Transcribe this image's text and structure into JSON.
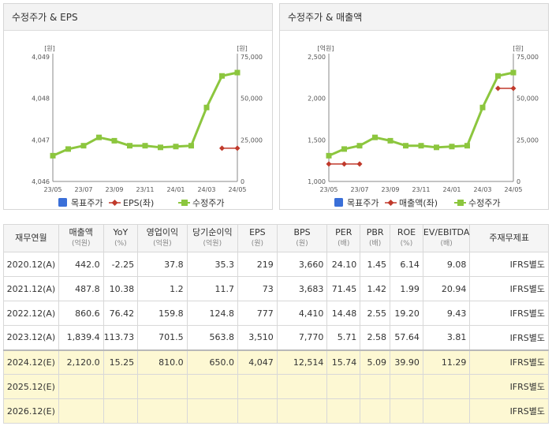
{
  "chart_data": [
    {
      "type": "line",
      "title": "수정주가 & EPS",
      "x": [
        "23/05",
        "23/06",
        "23/07",
        "23/08",
        "23/09",
        "23/10",
        "23/11",
        "23/12",
        "24/01",
        "24/02",
        "24/03",
        "24/04",
        "24/05"
      ],
      "xtick_labels": [
        "23/05",
        "23/07",
        "23/09",
        "23/11",
        "24/01",
        "24/03",
        "24/05"
      ],
      "left_axis": {
        "unit": "[원]",
        "range": [
          4046,
          4049
        ],
        "ticks": [
          "4,049",
          "4,048",
          "4,047",
          "4,046"
        ],
        "tick_values": [
          4049,
          4048,
          4047,
          4046
        ]
      },
      "right_axis": {
        "unit": "[원]",
        "range": [
          0,
          75000
        ],
        "ticks": [
          "75,000",
          "50,000",
          "25,000",
          "0"
        ],
        "tick_values": [
          75000,
          50000,
          25000,
          0
        ]
      },
      "series": [
        {
          "name": "목표주가",
          "axis": "right",
          "color": "#3a6fd8",
          "marker": "square",
          "values": [
            null,
            null,
            null,
            null,
            null,
            null,
            null,
            null,
            null,
            null,
            null,
            null,
            null
          ]
        },
        {
          "name": "EPS(좌)",
          "axis": "left",
          "color": "#c0392b",
          "marker": "diamond",
          "values": [
            null,
            null,
            null,
            null,
            null,
            null,
            null,
            null,
            null,
            null,
            null,
            4046.8,
            4046.8
          ]
        },
        {
          "name": "수정주가",
          "axis": "right",
          "color": "#8cc63e",
          "marker": "square",
          "values": [
            15500,
            19500,
            21500,
            26500,
            24500,
            21500,
            21500,
            20500,
            21000,
            21500,
            44500,
            63500,
            65500
          ]
        }
      ],
      "legend": "bottom"
    },
    {
      "type": "line",
      "title": "수정주가 & 매출액",
      "x": [
        "23/05",
        "23/06",
        "23/07",
        "23/08",
        "23/09",
        "23/10",
        "23/11",
        "23/12",
        "24/01",
        "24/02",
        "24/03",
        "24/04",
        "24/05"
      ],
      "xtick_labels": [
        "23/05",
        "23/07",
        "23/09",
        "23/11",
        "24/01",
        "24/03",
        "24/05"
      ],
      "left_axis": {
        "unit": "[억원]",
        "range": [
          1000,
          2500
        ],
        "ticks": [
          "2,500",
          "2,000",
          "1,500",
          "1,000"
        ],
        "tick_values": [
          2500,
          2000,
          1500,
          1000
        ]
      },
      "right_axis": {
        "unit": "[원]",
        "range": [
          0,
          75000
        ],
        "ticks": [
          "75,000",
          "50,000",
          "25,000",
          "0"
        ],
        "tick_values": [
          75000,
          50000,
          25000,
          0
        ]
      },
      "series": [
        {
          "name": "목표주가",
          "axis": "right",
          "color": "#3a6fd8",
          "marker": "square",
          "values": [
            null,
            null,
            null,
            null,
            null,
            null,
            null,
            null,
            null,
            null,
            null,
            null,
            null
          ]
        },
        {
          "name": "매출액(좌)",
          "axis": "left",
          "color": "#c0392b",
          "marker": "diamond",
          "values": [
            1210,
            1210,
            1210,
            null,
            null,
            null,
            null,
            null,
            null,
            null,
            null,
            2120,
            2120
          ]
        },
        {
          "name": "수정주가",
          "axis": "right",
          "color": "#8cc63e",
          "marker": "square",
          "values": [
            15500,
            19500,
            21500,
            26500,
            24500,
            21500,
            21500,
            20500,
            21000,
            21500,
            44500,
            63500,
            65500
          ]
        }
      ],
      "legend": "bottom"
    }
  ],
  "table": {
    "headers": [
      {
        "label": "재무연월",
        "sub": ""
      },
      {
        "label": "매출액",
        "sub": "(억원)"
      },
      {
        "label": "YoY",
        "sub": "(%)"
      },
      {
        "label": "영업이익",
        "sub": "(억원)"
      },
      {
        "label": "당기순이익",
        "sub": "(억원)"
      },
      {
        "label": "EPS",
        "sub": "(원)"
      },
      {
        "label": "BPS",
        "sub": "(원)"
      },
      {
        "label": "PER",
        "sub": "(배)"
      },
      {
        "label": "PBR",
        "sub": "(배)"
      },
      {
        "label": "ROE",
        "sub": "(%)"
      },
      {
        "label": "EV/EBITDA",
        "sub": "(배)"
      },
      {
        "label": "주재무제표",
        "sub": ""
      }
    ],
    "rows": [
      {
        "estimate": false,
        "cells": [
          "2020.12(A)",
          "442.0",
          "-2.25",
          "37.8",
          "35.3",
          "219",
          "3,660",
          "24.10",
          "1.45",
          "6.14",
          "9.08",
          "IFRS별도"
        ]
      },
      {
        "estimate": false,
        "cells": [
          "2021.12(A)",
          "487.8",
          "10.38",
          "1.2",
          "11.7",
          "73",
          "3,683",
          "71.45",
          "1.42",
          "1.99",
          "20.94",
          "IFRS별도"
        ]
      },
      {
        "estimate": false,
        "cells": [
          "2022.12(A)",
          "860.6",
          "76.42",
          "159.8",
          "124.8",
          "777",
          "4,410",
          "14.48",
          "2.55",
          "19.20",
          "9.43",
          "IFRS별도"
        ]
      },
      {
        "estimate": false,
        "cells": [
          "2023.12(A)",
          "1,839.4",
          "113.73",
          "701.5",
          "563.8",
          "3,510",
          "7,770",
          "5.71",
          "2.58",
          "57.64",
          "3.81",
          "IFRS별도"
        ]
      },
      {
        "estimate": true,
        "cells": [
          "2024.12(E)",
          "2,120.0",
          "15.25",
          "810.0",
          "650.0",
          "4,047",
          "12,514",
          "15.74",
          "5.09",
          "39.90",
          "11.29",
          "IFRS별도"
        ]
      },
      {
        "estimate": true,
        "cells": [
          "2025.12(E)",
          "",
          "",
          "",
          "",
          "",
          "",
          "",
          "",
          "",
          "",
          "IFRS별도"
        ]
      },
      {
        "estimate": true,
        "cells": [
          "2026.12(E)",
          "",
          "",
          "",
          "",
          "",
          "",
          "",
          "",
          "",
          "",
          "IFRS별도"
        ]
      }
    ]
  }
}
